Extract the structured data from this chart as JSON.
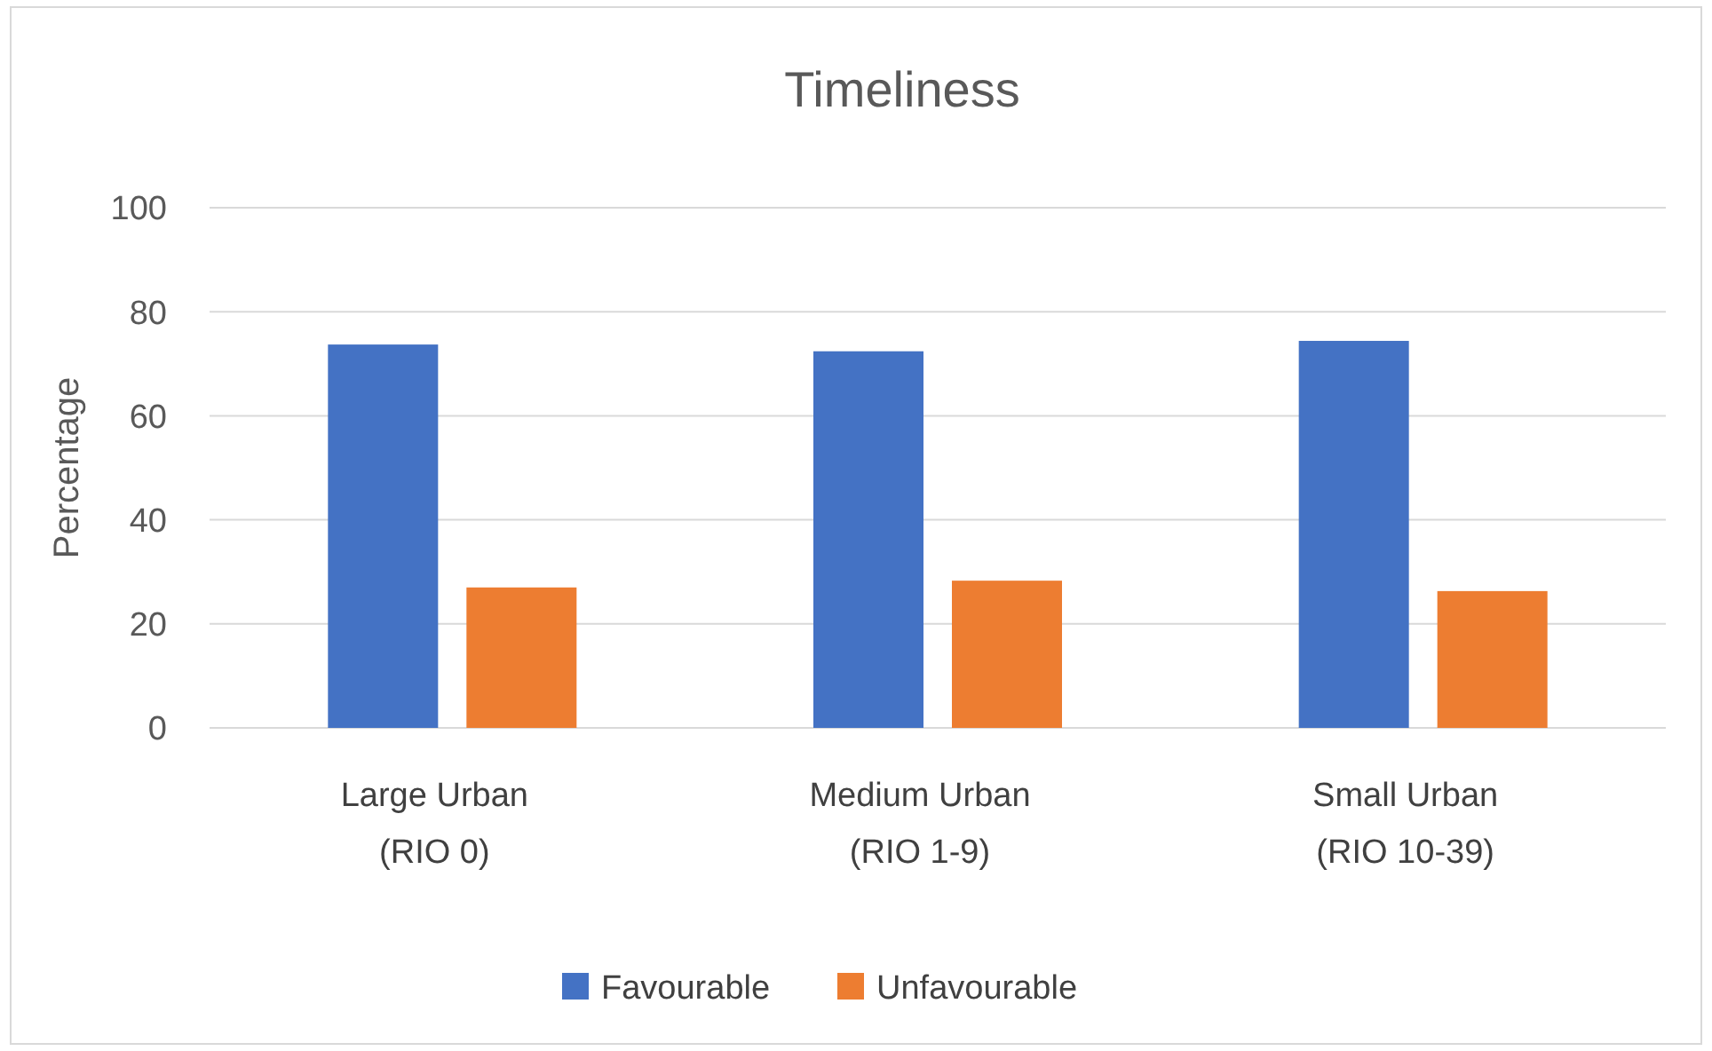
{
  "chart_data": {
    "type": "bar",
    "title": "Timeliness",
    "ylabel": "Percentage",
    "categories": [
      "Large Urban\n(RIO 0)",
      "Medium Urban\n(RIO 1-9)",
      "Small Urban\n(RIO 10-39)"
    ],
    "series": [
      {
        "name": "Favourable",
        "color": "#4472c4",
        "values": [
          73.7,
          72.4,
          74.4
        ]
      },
      {
        "name": "Unfavourable",
        "color": "#ed7d31",
        "values": [
          27.0,
          28.3,
          26.3
        ]
      }
    ],
    "ylim": [
      0,
      100
    ],
    "yticks": [
      0,
      20,
      40,
      60,
      80,
      100
    ],
    "grid": "y",
    "legend": "bottom"
  }
}
